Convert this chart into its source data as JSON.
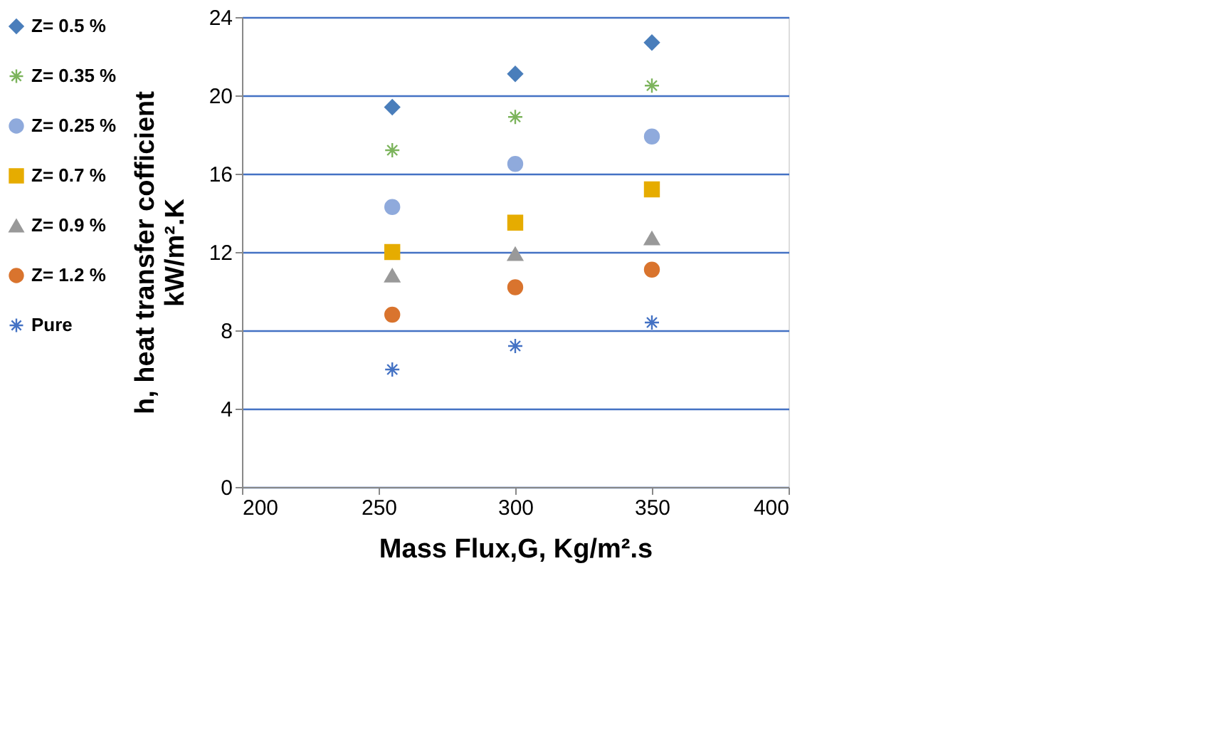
{
  "chart_data": {
    "type": "scatter",
    "xlabel": "Mass Flux,G,  Kg/m².s",
    "ylabel": "h, heat transfer cofficient\nkW/m².K",
    "x": [
      255,
      300,
      350
    ],
    "xlim": [
      200,
      400
    ],
    "xticks": [
      200,
      250,
      300,
      350,
      400
    ],
    "ylim": [
      0,
      24
    ],
    "yticks": [
      0,
      4,
      8,
      12,
      16,
      20,
      24
    ],
    "grid": "y",
    "legend": "left",
    "series": [
      {
        "name": "Z= 0.5 %",
        "color": "#4a7ebb",
        "marker": "diamond",
        "values": [
          19.4,
          21.1,
          22.7
        ]
      },
      {
        "name": "Z= 0.35 %",
        "color": "#7cb45c",
        "marker": "cross",
        "values": [
          17.2,
          18.9,
          20.5
        ]
      },
      {
        "name": "Z= 0.25 %",
        "color": "#8faadc",
        "marker": "circle",
        "values": [
          14.3,
          16.5,
          17.9
        ]
      },
      {
        "name": "Z= 0.7 %",
        "color": "#e6ac00",
        "marker": "square",
        "values": [
          12.0,
          13.5,
          15.2
        ]
      },
      {
        "name": "Z= 0.9 %",
        "color": "#999999",
        "marker": "triangle",
        "values": [
          10.8,
          11.9,
          12.7
        ]
      },
      {
        "name": "Z= 1.2 %",
        "color": "#d9742e",
        "marker": "circle",
        "values": [
          8.8,
          10.2,
          11.1
        ]
      },
      {
        "name": "Pure",
        "color": "#4472c4",
        "marker": "cross",
        "values": [
          6.0,
          7.2,
          8.4
        ]
      }
    ]
  }
}
